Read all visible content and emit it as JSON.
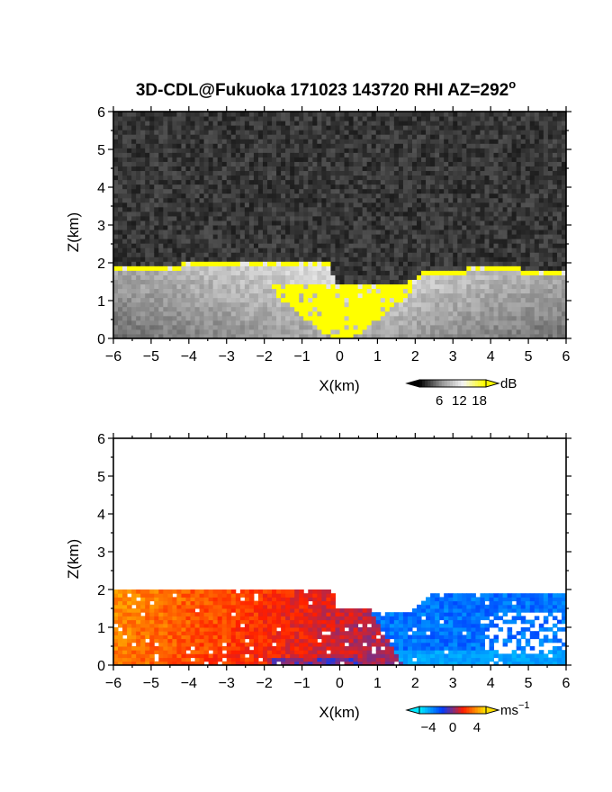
{
  "title": "3D-CDL@Fukuoka 171023 143720 RHI AZ=292",
  "title_suffix": "o",
  "chart_data": [
    {
      "type": "heatmap",
      "name": "backscatter",
      "xlabel": "X(km)",
      "ylabel": "Z(km)",
      "xlim": [
        -6,
        6
      ],
      "ylim": [
        0,
        6
      ],
      "xticks": [
        "-6",
        "-5",
        "-4",
        "-3",
        "-2",
        "-1",
        "0",
        "1",
        "2",
        "3",
        "4",
        "5",
        "6"
      ],
      "yticks": [
        "0",
        "1",
        "2",
        "3",
        "4",
        "5",
        "6"
      ],
      "grid": false,
      "colorbar": {
        "unit": "dB",
        "ticks": [
          "6",
          "12",
          "18"
        ],
        "values": [
          6,
          12,
          18
        ],
        "colors": [
          "#202020",
          "#f0f0f0",
          "#ffff00"
        ]
      },
      "features": {
        "aerosol_top_km": [
          [
            -6,
            1.9
          ],
          [
            -3,
            1.95
          ],
          [
            -1,
            1.98
          ],
          [
            -0.3,
            1.95
          ],
          [
            -0.1,
            1.45
          ],
          [
            1.7,
            1.4
          ],
          [
            2.3,
            1.75
          ],
          [
            4,
            1.85
          ],
          [
            6,
            1.75
          ]
        ],
        "high_value_color": "#ffff00"
      }
    },
    {
      "type": "heatmap",
      "name": "doppler_velocity",
      "xlabel": "X(km)",
      "ylabel": "Z(km)",
      "xlim": [
        -6,
        6
      ],
      "ylim": [
        0,
        6
      ],
      "xticks": [
        "-6",
        "-5",
        "-4",
        "-3",
        "-2",
        "-1",
        "0",
        "1",
        "2",
        "3",
        "4",
        "5",
        "6"
      ],
      "yticks": [
        "0",
        "1",
        "2",
        "3",
        "4",
        "5",
        "6"
      ],
      "grid": false,
      "colorbar": {
        "unit": "ms",
        "unit_exp": "-1",
        "ticks": [
          "-4",
          "0",
          "4"
        ],
        "values": [
          -4,
          0,
          4
        ],
        "colors": [
          "#00e0ff",
          "#0040ff",
          "#ff2000",
          "#ffe000"
        ]
      },
      "features": {
        "echo_top_km": [
          [
            -6,
            1.95
          ],
          [
            -1,
            2.0
          ],
          [
            -0.2,
            1.95
          ],
          [
            -0.1,
            1.55
          ],
          [
            1.8,
            1.35
          ],
          [
            2.4,
            1.9
          ],
          [
            4,
            1.95
          ],
          [
            6,
            1.85
          ]
        ],
        "velocity_left_ms": 2.5,
        "velocity_right_ms": -3.0
      }
    }
  ]
}
